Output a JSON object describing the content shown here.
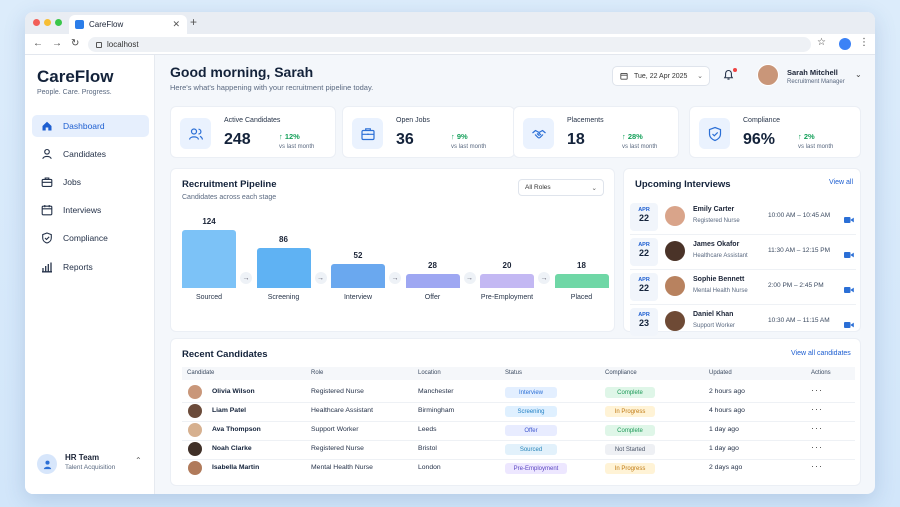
{
  "browser": {
    "tab_title": "CareFlow",
    "tab_close": "✕",
    "new_tab": "+",
    "url": "localhost"
  },
  "sidebar": {
    "brand": "CareFlow",
    "tagline": "People. Care. Progress.",
    "items": [
      {
        "label": "Dashboard",
        "icon": "home-icon",
        "active": true
      },
      {
        "label": "Candidates",
        "icon": "person-icon",
        "active": false
      },
      {
        "label": "Jobs",
        "icon": "briefcase-icon",
        "active": false
      },
      {
        "label": "Interviews",
        "icon": "calendar-icon",
        "active": false
      },
      {
        "label": "Compliance",
        "icon": "shield-icon",
        "active": false
      },
      {
        "label": "Reports",
        "icon": "bar-chart-icon",
        "active": false
      }
    ],
    "team": {
      "name": "HR Team",
      "subtitle": "Talent Acquisition"
    }
  },
  "header": {
    "greeting": "Good morning, Sarah",
    "subtitle": "Here's what's happening with your recruitment pipeline today.",
    "date": "Tue, 22 Apr 2025",
    "user_name": "Sarah Mitchell",
    "user_role": "Recruitment Manager"
  },
  "stats": [
    {
      "label": "Active Candidates",
      "value": "248",
      "delta": "↑ 12%",
      "note": "vs last month",
      "icon": "people-icon"
    },
    {
      "label": "Open Jobs",
      "value": "36",
      "delta": "↑ 9%",
      "note": "vs last month",
      "icon": "briefcase-icon"
    },
    {
      "label": "Placements",
      "value": "18",
      "delta": "↑ 28%",
      "note": "vs last month",
      "icon": "handshake-icon"
    },
    {
      "label": "Compliance",
      "value": "96%",
      "delta": "↑ 2%",
      "note": "vs last month",
      "icon": "shield-check-icon"
    }
  ],
  "pipeline": {
    "title": "Recruitment Pipeline",
    "subtitle": "Candidates across each stage",
    "filter": "All Roles",
    "arrow": "→"
  },
  "chart_data": {
    "type": "bar",
    "categories": [
      "Sourced",
      "Screening",
      "Interview",
      "Offer",
      "Pre-Employment",
      "Placed"
    ],
    "values": [
      124,
      86,
      52,
      28,
      20,
      18
    ],
    "colors": [
      "#7cc2f7",
      "#5fb2f3",
      "#6aa8ef",
      "#9ea7f2",
      "#c3b8f3",
      "#6fd7a6"
    ],
    "title": "Recruitment Pipeline",
    "xlabel": "",
    "ylabel": "",
    "ylim": [
      0,
      124
    ],
    "grid": false
  },
  "interviews": {
    "title": "Upcoming Interviews",
    "view_all": "View all",
    "items": [
      {
        "month": "APR",
        "day": "22",
        "name": "Emily Carter",
        "role": "Registered Nurse",
        "time": "10:00 AM – 10:45 AM",
        "avatar_color": "#d9a48a"
      },
      {
        "month": "APR",
        "day": "22",
        "name": "James Okafor",
        "role": "Healthcare Assistant",
        "time": "11:30 AM – 12:15 PM",
        "avatar_color": "#4a3328"
      },
      {
        "month": "APR",
        "day": "22",
        "name": "Sophie Bennett",
        "role": "Mental Health Nurse",
        "time": "2:00 PM – 2:45 PM",
        "avatar_color": "#b8825f"
      },
      {
        "month": "APR",
        "day": "23",
        "name": "Daniel Khan",
        "role": "Support Worker",
        "time": "10:30 AM – 11:15 AM",
        "avatar_color": "#6e4a35"
      }
    ]
  },
  "recent": {
    "title": "Recent Candidates",
    "view_all": "View all candidates",
    "columns": [
      "Candidate",
      "Role",
      "Location",
      "Status",
      "Compliance",
      "Updated",
      "Actions"
    ],
    "actions_glyph": "···",
    "rows": [
      {
        "name": "Olivia Wilson",
        "role": "Registered Nurse",
        "location": "Manchester",
        "status": "Interview",
        "compliance": "Complete",
        "updated": "2 hours ago",
        "avatar_color": "#c9977a"
      },
      {
        "name": "Liam Patel",
        "role": "Healthcare Assistant",
        "location": "Birmingham",
        "status": "Screening",
        "compliance": "In Progress",
        "updated": "4 hours ago",
        "avatar_color": "#6b4b3a"
      },
      {
        "name": "Ava Thompson",
        "role": "Support Worker",
        "location": "Leeds",
        "status": "Offer",
        "compliance": "Complete",
        "updated": "1 day ago",
        "avatar_color": "#d6b08f"
      },
      {
        "name": "Noah Clarke",
        "role": "Registered Nurse",
        "location": "Bristol",
        "status": "Sourced",
        "compliance": "Not Started",
        "updated": "1 day ago",
        "avatar_color": "#3f2f27"
      },
      {
        "name": "Isabella Martin",
        "role": "Mental Health Nurse",
        "location": "London",
        "status": "Pre-Employment",
        "compliance": "In Progress",
        "updated": "2 days ago",
        "avatar_color": "#b07a5a"
      }
    ],
    "status_colors": {
      "Interview": {
        "bg": "#e3efff",
        "fg": "#2b6fd6"
      },
      "Screening": {
        "bg": "#dff0ff",
        "fg": "#1f7fc4"
      },
      "Offer": {
        "bg": "#e8ecff",
        "fg": "#3f57cf"
      },
      "Sourced": {
        "bg": "#e2f1fb",
        "fg": "#2583b8"
      },
      "Pre-Employment": {
        "bg": "#ede7ff",
        "fg": "#5b45c2"
      }
    },
    "compliance_colors": {
      "Complete": {
        "bg": "#dff6e8",
        "fg": "#1d9a58"
      },
      "In Progress": {
        "bg": "#fff3d6",
        "fg": "#c07a12"
      },
      "Not Started": {
        "bg": "#eef0f4",
        "fg": "#4a5568"
      }
    }
  }
}
